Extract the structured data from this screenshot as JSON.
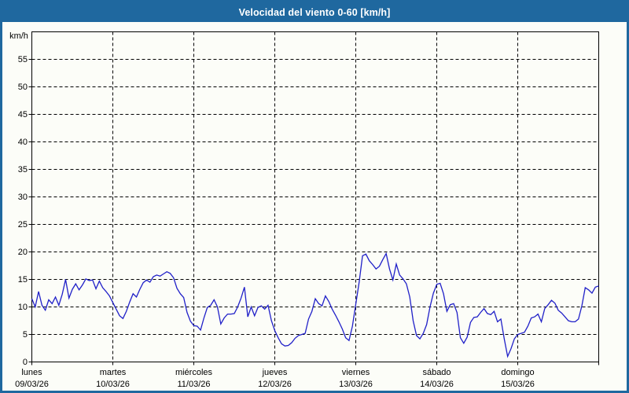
{
  "window": {
    "title": "Velocidad del viento 0-60 [km/h]"
  },
  "colors": {
    "frame": "#1f689f",
    "title_text": "#ffffff",
    "canvas": "#fcfdf8",
    "grid": "#000000",
    "axis_text": "#000000",
    "line": "#2020c8"
  },
  "chart_data": {
    "type": "line",
    "title": "Velocidad del viento 0-60 [km/h]",
    "ylabel": "km/h",
    "ylim": [
      0,
      60
    ],
    "ytick_step": 5,
    "ytick_labels": [
      "0",
      "5",
      "10",
      "15",
      "20",
      "25",
      "30",
      "35",
      "40",
      "45",
      "50",
      "55"
    ],
    "grid": "dashed",
    "legend": "none",
    "x_unit": "hours over 7 days",
    "days": [
      {
        "label": "lunes",
        "date": "09/03/26"
      },
      {
        "label": "martes",
        "date": "10/03/26"
      },
      {
        "label": "miércoles",
        "date": "11/03/26"
      },
      {
        "label": "jueves",
        "date": "12/03/26"
      },
      {
        "label": "viernes",
        "date": "13/03/26"
      },
      {
        "label": "sábado",
        "date": "14/03/26"
      },
      {
        "label": "domingo",
        "date": "15/03/26"
      }
    ],
    "series": [
      {
        "name": "velocidad_viento_kmh",
        "color": "#2020c8",
        "values": [
          11.5,
          10.0,
          12.8,
          10.3,
          9.4,
          11.3,
          10.6,
          11.8,
          10.3,
          12.3,
          15.0,
          11.6,
          13.2,
          14.2,
          13.1,
          14.0,
          15.1,
          14.8,
          14.9,
          13.3,
          14.7,
          13.5,
          12.8,
          12.0,
          10.8,
          9.6,
          8.4,
          7.9,
          9.2,
          10.9,
          12.4,
          11.8,
          13.2,
          14.4,
          14.9,
          14.5,
          15.5,
          15.8,
          15.6,
          16.0,
          16.4,
          16.1,
          15.3,
          13.4,
          12.4,
          11.7,
          9.0,
          7.4,
          6.6,
          6.5,
          5.8,
          8.0,
          9.9,
          10.3,
          11.3,
          10.0,
          6.9,
          8.0,
          8.7,
          8.7,
          8.8,
          10.0,
          11.6,
          13.6,
          8.2,
          10.0,
          8.4,
          9.9,
          10.2,
          9.6,
          10.3,
          7.5,
          5.7,
          4.4,
          3.3,
          2.9,
          3.0,
          3.5,
          4.3,
          4.8,
          5.0,
          5.2,
          7.8,
          9.2,
          11.5,
          10.6,
          10.2,
          12.0,
          11.0,
          9.6,
          8.5,
          7.3,
          6.0,
          4.4,
          3.9,
          6.5,
          10.5,
          14.5,
          19.3,
          19.6,
          18.4,
          17.7,
          16.9,
          17.4,
          18.6,
          19.7,
          16.9,
          14.9,
          17.8,
          15.8,
          15.1,
          14.2,
          11.8,
          7.5,
          4.8,
          4.2,
          5.2,
          6.8,
          10.0,
          12.5,
          14.1,
          14.3,
          12.4,
          9.2,
          10.4,
          10.6,
          9.0,
          4.4,
          3.4,
          4.5,
          7.2,
          8.1,
          8.2,
          9.0,
          9.7,
          8.8,
          8.6,
          9.2,
          7.3,
          7.8,
          4.2,
          1.0,
          2.4,
          4.2,
          5.0,
          5.2,
          5.4,
          6.5,
          8.0,
          8.2,
          8.7,
          7.3,
          9.7,
          10.4,
          11.2,
          10.7,
          9.4,
          8.9,
          8.2,
          7.5,
          7.3,
          7.3,
          7.8,
          10.2,
          13.5,
          13.1,
          12.5,
          13.6,
          13.8
        ]
      }
    ]
  }
}
